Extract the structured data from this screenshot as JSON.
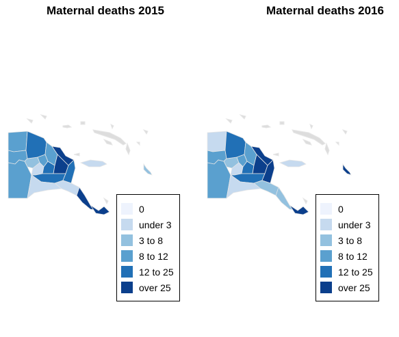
{
  "maps": [
    {
      "title": "Maternal deaths 2015",
      "region_bins": [
        "7",
        "8",
        "3",
        "11",
        "4",
        "8",
        "3",
        "10",
        "7",
        "12",
        "11",
        "10",
        "10",
        "3",
        "4",
        "10",
        "4",
        "4",
        "4"
      ]
    },
    {
      "title": "Maternal deaths 2016",
      "region_bins": [
        "7",
        "8",
        "3",
        "11",
        "4",
        "8",
        "3",
        "10",
        "7",
        "12",
        "11",
        "10",
        "10",
        "3",
        "3",
        "3",
        "10",
        "4",
        "10"
      ]
    }
  ],
  "legend": {
    "items": [
      {
        "label": "0",
        "color": "#eef3fd"
      },
      {
        "label": "under 3",
        "color": "#c6daef"
      },
      {
        "label": "3 to 8",
        "color": "#93c1df"
      },
      {
        "label": "8 to 12",
        "color": "#5aa0cf"
      },
      {
        "label": "12 to 25",
        "color": "#2170b6"
      },
      {
        "label": "over 25",
        "color": "#0b3f8c"
      }
    ]
  },
  "colors": {
    "border": "#e6e6e6",
    "island_gray": "#dddddd"
  }
}
